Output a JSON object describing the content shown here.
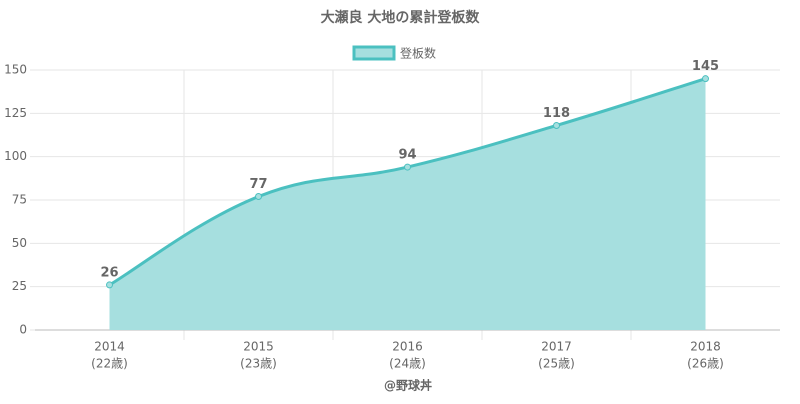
{
  "chart_data": {
    "type": "area",
    "title": "大瀬良 大地の累計登板数",
    "categories": [
      "2014",
      "2015",
      "2016",
      "2017",
      "2018"
    ],
    "category_sublabels": [
      "(22歳)",
      "(23歳)",
      "(24歳)",
      "(25歳)",
      "(26歳)"
    ],
    "x_label": "@野球丼",
    "series": [
      {
        "name": "登板数",
        "color": "#4bc0c0",
        "fill": "#a6dfdf",
        "values": [
          26,
          77,
          94,
          118,
          145
        ]
      }
    ],
    "ylim": [
      0,
      150
    ],
    "yticks": [
      0,
      25,
      50,
      75,
      100,
      125,
      150
    ],
    "grid": true,
    "legend": "top"
  }
}
